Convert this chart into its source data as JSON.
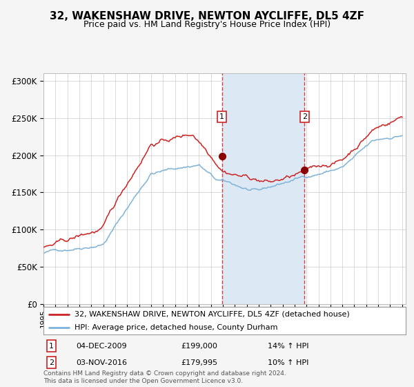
{
  "title": "32, WAKENSHAW DRIVE, NEWTON AYCLIFFE, DL5 4ZF",
  "subtitle": "Price paid vs. HM Land Registry's House Price Index (HPI)",
  "legend_line1": "32, WAKENSHAW DRIVE, NEWTON AYCLIFFE, DL5 4ZF (detached house)",
  "legend_line2": "HPI: Average price, detached house, County Durham",
  "transaction1_date": "04-DEC-2009",
  "transaction1_price": 199000,
  "transaction1_label": "14% ↑ HPI",
  "transaction2_date": "03-NOV-2016",
  "transaction2_price": 179995,
  "transaction2_label": "10% ↑ HPI",
  "footer": "Contains HM Land Registry data © Crown copyright and database right 2024.\nThis data is licensed under the Open Government Licence v3.0.",
  "hpi_color": "#7fb2d8",
  "price_color": "#cc2222",
  "dot_color": "#8b0000",
  "shade_color": "#dce9f5",
  "grid_color": "#cccccc",
  "bg_color": "#f5f5f5",
  "plot_bg": "#ffffff",
  "dashed_color": "#cc2222",
  "ylim": [
    0,
    310000
  ],
  "yticks": [
    0,
    50000,
    100000,
    150000,
    200000,
    250000,
    300000
  ],
  "year_start": 1995,
  "year_end": 2025,
  "transaction1_year": 2009.92,
  "transaction2_year": 2016.84,
  "transaction1_value": 199000,
  "transaction2_value": 179995
}
